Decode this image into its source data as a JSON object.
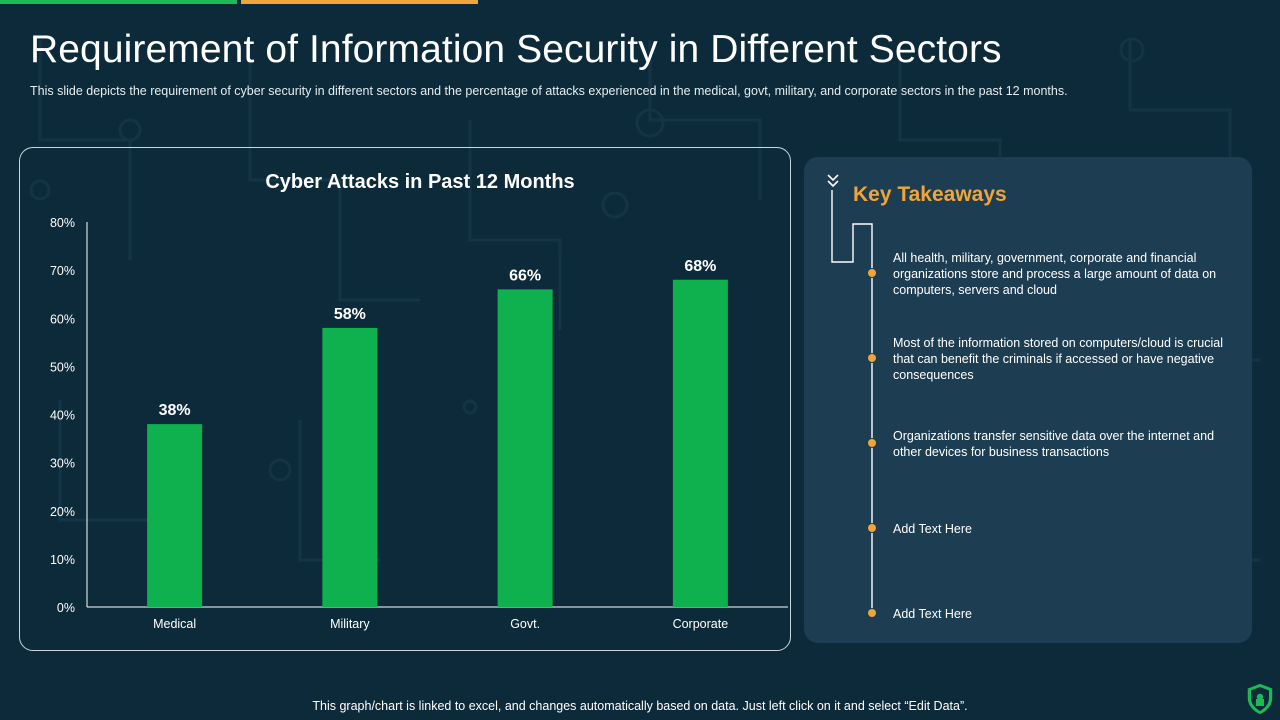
{
  "slide": {
    "title": "Requirement of Information Security in Different Sectors",
    "subtitle": "This slide depicts the requirement  of cyber security in different  sectors and the percentage  of attacks experienced  in the medical, govt, military, and corporate sectors in the past 12 months.",
    "footer": "This graph/chart is linked to excel, and changes automatically based on data. Just left click on it and select “Edit Data”."
  },
  "colors": {
    "background": "#0d2a3a",
    "bar": "#0fb14e",
    "accent_green": "#1db954",
    "accent_orange": "#f0a43a",
    "panel": "#1d3d52"
  },
  "chart_data": {
    "type": "bar",
    "title": "Cyber Attacks in Past 12 Months",
    "categories": [
      "Medical",
      "Military",
      "Govt.",
      "Corporate"
    ],
    "values": [
      38,
      58,
      66,
      68
    ],
    "value_labels": [
      "38%",
      "58%",
      "66%",
      "68%"
    ],
    "ylim": [
      0,
      80
    ],
    "y_ticks": [
      0,
      10,
      20,
      30,
      40,
      50,
      60,
      70,
      80
    ],
    "y_tick_labels": [
      "0%",
      "10%",
      "20%",
      "30%",
      "40%",
      "50%",
      "60%",
      "70%",
      "80%"
    ],
    "xlabel": "",
    "ylabel": "",
    "grid": false,
    "legend": "none"
  },
  "takeaways": {
    "title": "Key Takeaways",
    "icon": "double-chevron-down-icon",
    "items": [
      "All health, military, government,  corporate and financial organizations store and process a large amount of data on computers,  servers and cloud",
      "Most of the information  stored on computers/cloud is crucial that can benefit the criminals if accessed or have negative  consequences",
      "Organizations transfer sensitive data over the internet and other devices for business transactions",
      "Add Text Here",
      "Add Text Here"
    ]
  },
  "logo": {
    "icon": "shield-lock-icon"
  }
}
